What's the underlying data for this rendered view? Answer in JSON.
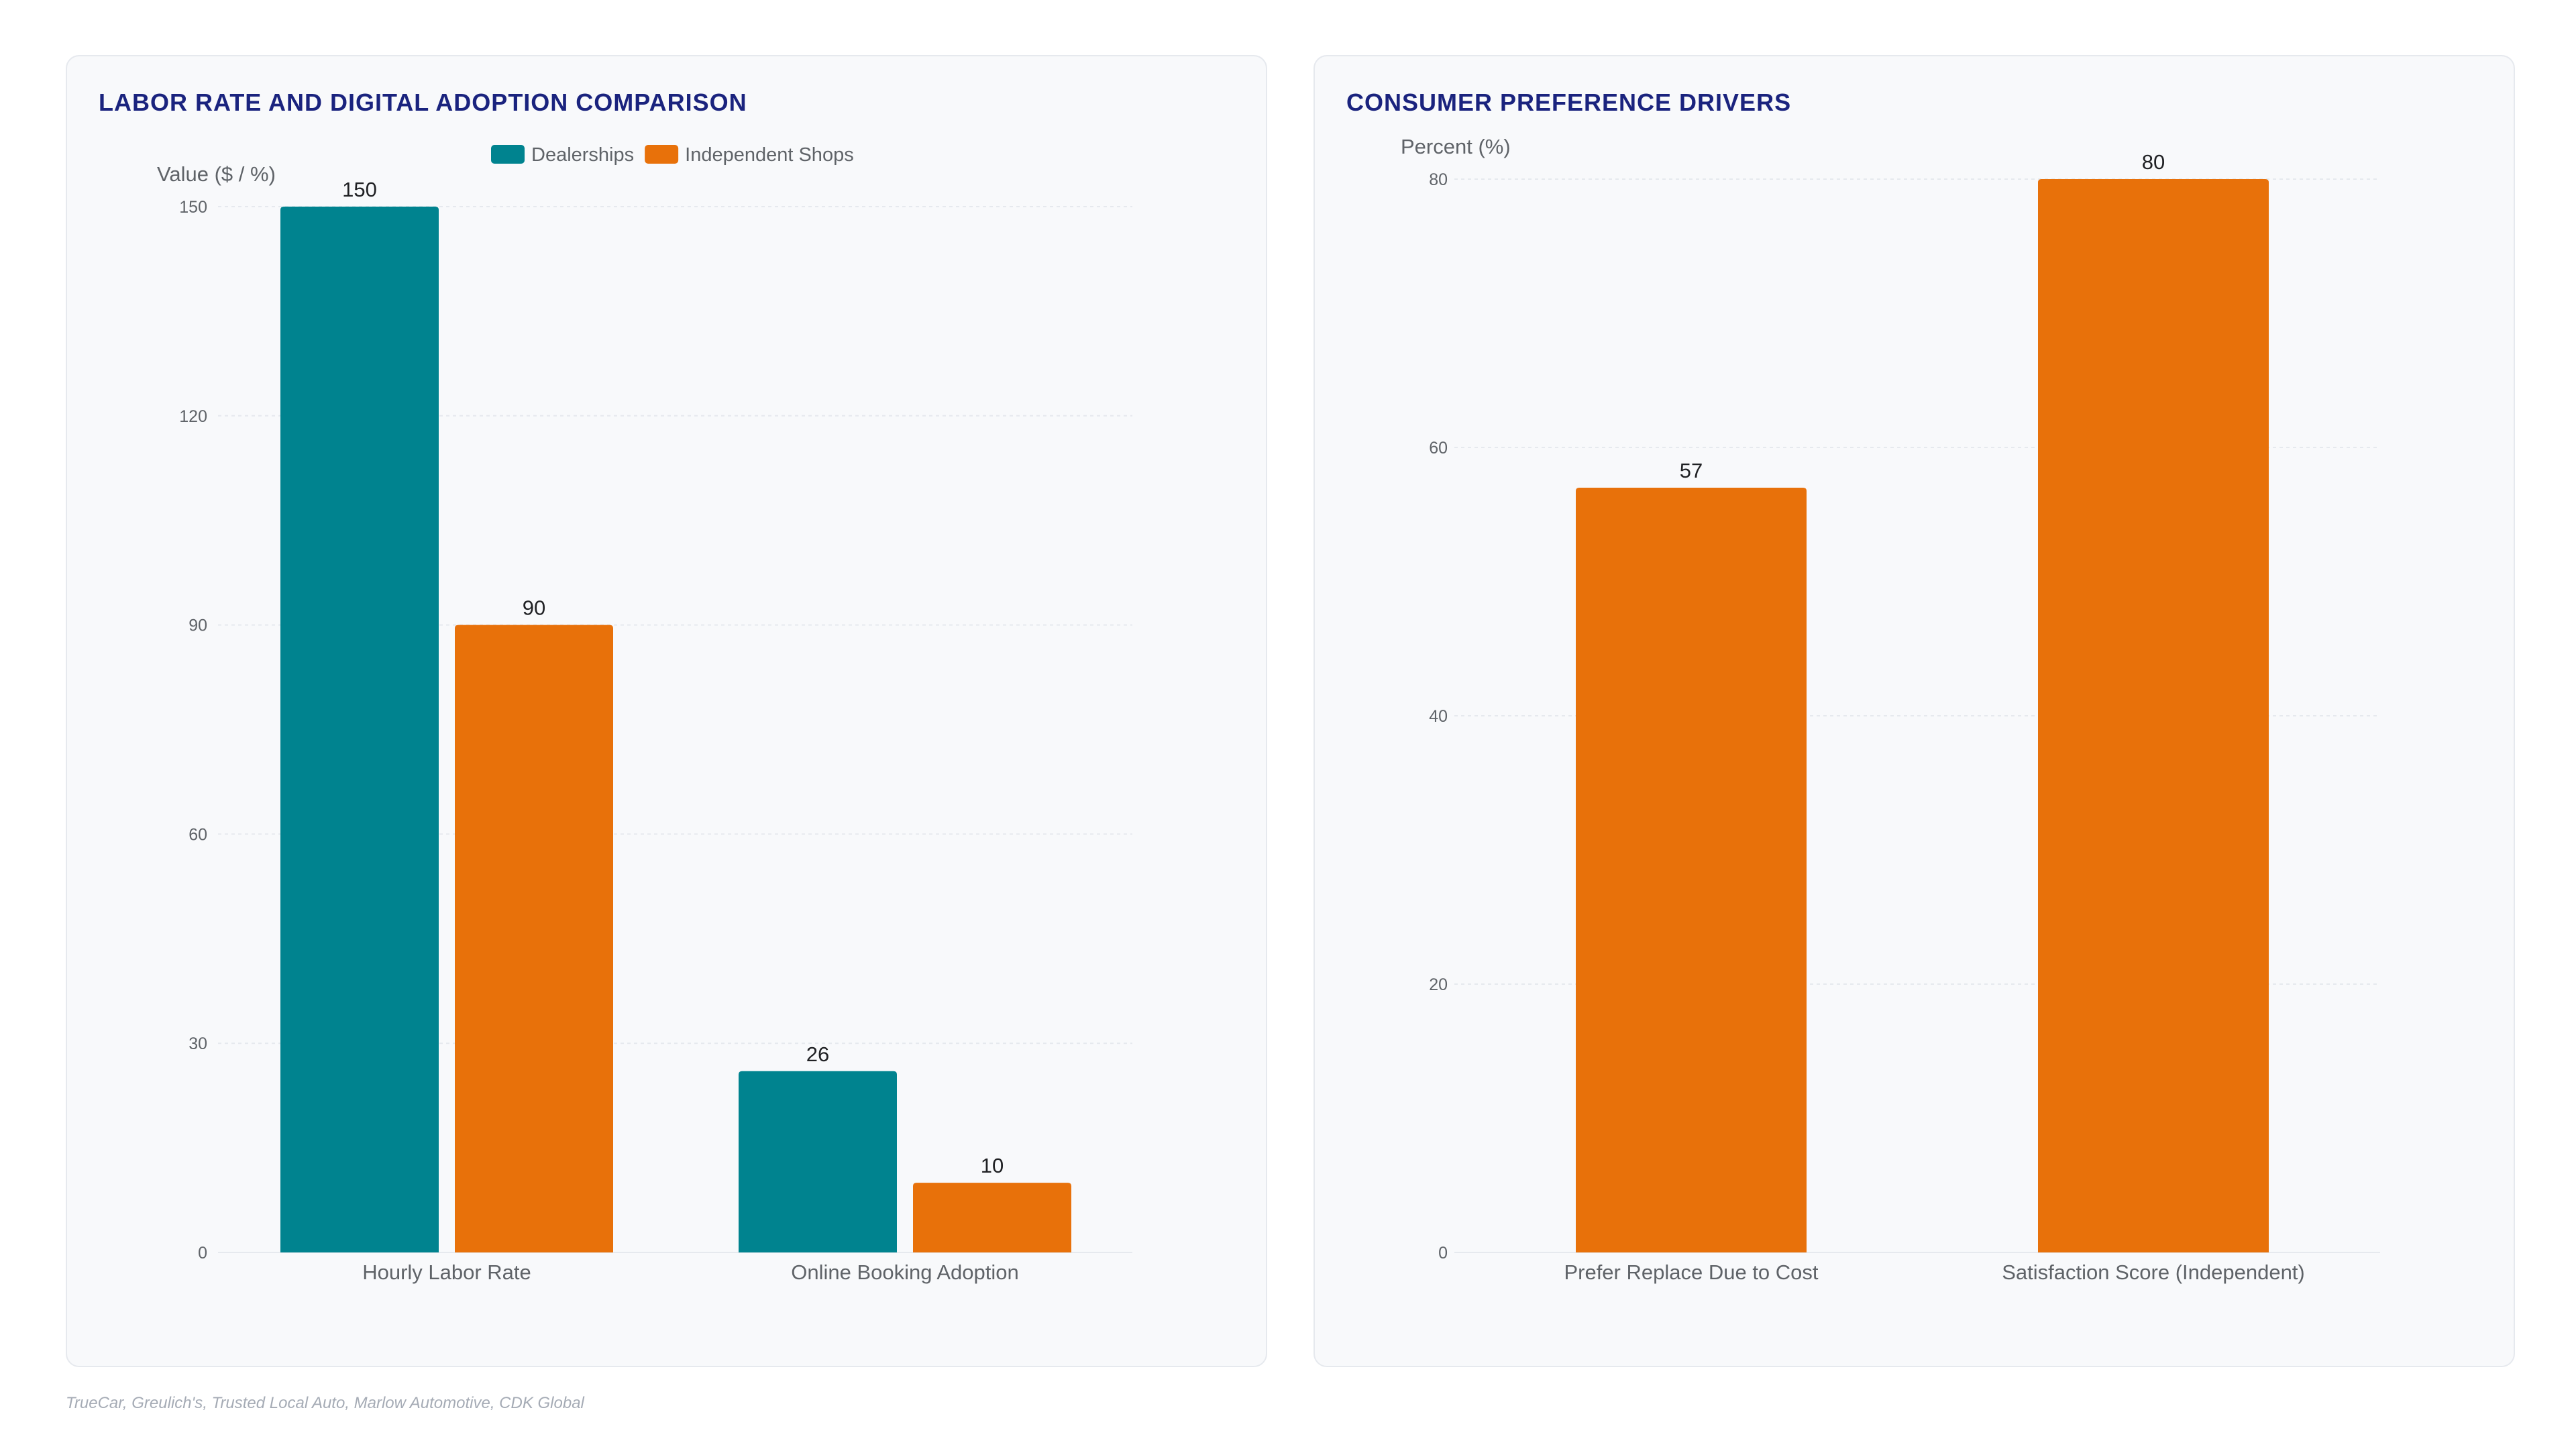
{
  "footer": {
    "source": "TrueCar, Greulich's, Trusted Local Auto, Marlow Automotive, CDK Global"
  },
  "colors": {
    "dealerships": "#00838f",
    "independent": "#e8710a",
    "title": "#1a237e",
    "grid": "#e6e9ee",
    "axis_text": "#5f6368",
    "value_text": "#202124"
  },
  "chart_data": [
    {
      "type": "bar",
      "title": "LABOR RATE AND DIGITAL ADOPTION COMPARISON",
      "ylabel": "Value ($ / %)",
      "xlabel": "",
      "categories": [
        "Hourly Labor Rate",
        "Online Booking Adoption"
      ],
      "series": [
        {
          "name": "Dealerships",
          "color": "#00838f",
          "values": [
            150,
            26
          ]
        },
        {
          "name": "Independent Shops",
          "color": "#e8710a",
          "values": [
            90,
            10
          ]
        }
      ],
      "ylim": [
        0,
        150
      ],
      "yticks": [
        0,
        30,
        60,
        90,
        120,
        150
      ],
      "grid": true,
      "legend": "top-center"
    },
    {
      "type": "bar",
      "title": "CONSUMER PREFERENCE DRIVERS",
      "ylabel": "Percent (%)",
      "xlabel": "",
      "categories": [
        "Prefer Replace Due to Cost",
        "Satisfaction Score (Independent)"
      ],
      "series": [
        {
          "color": "#e8710a",
          "values": [
            57,
            80
          ]
        }
      ],
      "ylim": [
        0,
        80
      ],
      "yticks": [
        0,
        20,
        40,
        60,
        80
      ],
      "grid": true,
      "legend": "none"
    }
  ]
}
